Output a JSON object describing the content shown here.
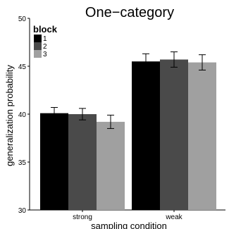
{
  "chart_data": {
    "type": "bar",
    "title": "One−category",
    "xlabel": "sampling condition",
    "ylabel": "generalization probability",
    "ylim": [
      30,
      50
    ],
    "yticks": [
      "30",
      "35",
      "40",
      "45",
      "50"
    ],
    "grid": false,
    "categories": [
      "strong",
      "weak"
    ],
    "legend": {
      "title": "block",
      "placement": "top-left"
    },
    "series": [
      {
        "name": "1",
        "color": "#000000",
        "values": [
          40.1,
          45.5
        ],
        "errors": [
          0.6,
          0.8
        ]
      },
      {
        "name": "2",
        "color": "#4a4a4a",
        "values": [
          40.0,
          45.7
        ],
        "errors": [
          0.6,
          0.8
        ]
      },
      {
        "name": "3",
        "color": "#a0a0a0",
        "values": [
          39.2,
          45.4
        ],
        "errors": [
          0.7,
          0.8
        ]
      }
    ]
  }
}
